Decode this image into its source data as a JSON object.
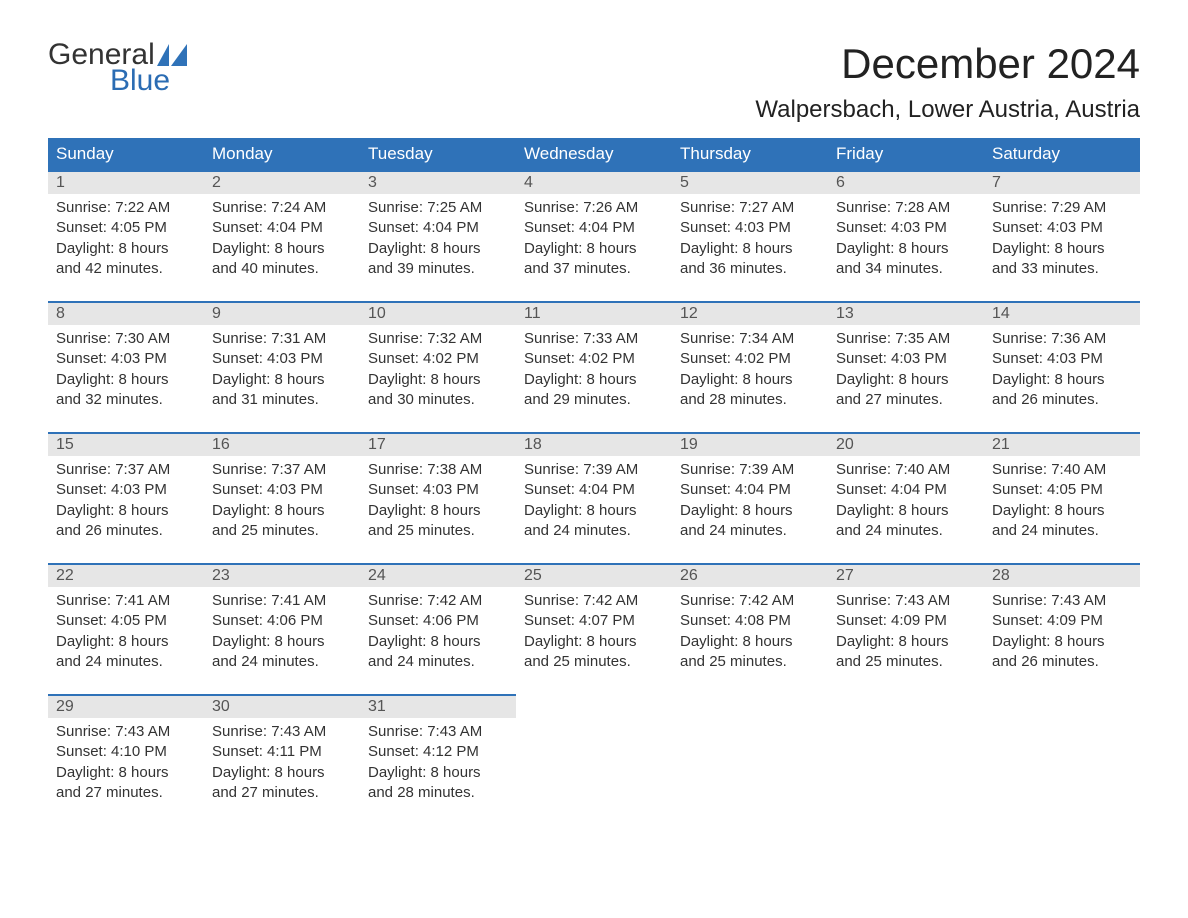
{
  "logo": {
    "word1": "General",
    "word2": "Blue",
    "sail_color": "#2f72b8"
  },
  "title": "December 2024",
  "location": "Walpersbach, Lower Austria, Austria",
  "colors": {
    "header_bg": "#2f72b8",
    "header_text": "#ffffff",
    "daynum_bg": "#e6e6e6",
    "row_border": "#2f72b8",
    "body_text": "#333333",
    "page_bg": "#ffffff"
  },
  "weekdays": [
    "Sunday",
    "Monday",
    "Tuesday",
    "Wednesday",
    "Thursday",
    "Friday",
    "Saturday"
  ],
  "days": [
    {
      "n": 1,
      "sunrise": "7:22 AM",
      "sunset": "4:05 PM",
      "dl1": "Daylight: 8 hours",
      "dl2": "and 42 minutes."
    },
    {
      "n": 2,
      "sunrise": "7:24 AM",
      "sunset": "4:04 PM",
      "dl1": "Daylight: 8 hours",
      "dl2": "and 40 minutes."
    },
    {
      "n": 3,
      "sunrise": "7:25 AM",
      "sunset": "4:04 PM",
      "dl1": "Daylight: 8 hours",
      "dl2": "and 39 minutes."
    },
    {
      "n": 4,
      "sunrise": "7:26 AM",
      "sunset": "4:04 PM",
      "dl1": "Daylight: 8 hours",
      "dl2": "and 37 minutes."
    },
    {
      "n": 5,
      "sunrise": "7:27 AM",
      "sunset": "4:03 PM",
      "dl1": "Daylight: 8 hours",
      "dl2": "and 36 minutes."
    },
    {
      "n": 6,
      "sunrise": "7:28 AM",
      "sunset": "4:03 PM",
      "dl1": "Daylight: 8 hours",
      "dl2": "and 34 minutes."
    },
    {
      "n": 7,
      "sunrise": "7:29 AM",
      "sunset": "4:03 PM",
      "dl1": "Daylight: 8 hours",
      "dl2": "and 33 minutes."
    },
    {
      "n": 8,
      "sunrise": "7:30 AM",
      "sunset": "4:03 PM",
      "dl1": "Daylight: 8 hours",
      "dl2": "and 32 minutes."
    },
    {
      "n": 9,
      "sunrise": "7:31 AM",
      "sunset": "4:03 PM",
      "dl1": "Daylight: 8 hours",
      "dl2": "and 31 minutes."
    },
    {
      "n": 10,
      "sunrise": "7:32 AM",
      "sunset": "4:02 PM",
      "dl1": "Daylight: 8 hours",
      "dl2": "and 30 minutes."
    },
    {
      "n": 11,
      "sunrise": "7:33 AM",
      "sunset": "4:02 PM",
      "dl1": "Daylight: 8 hours",
      "dl2": "and 29 minutes."
    },
    {
      "n": 12,
      "sunrise": "7:34 AM",
      "sunset": "4:02 PM",
      "dl1": "Daylight: 8 hours",
      "dl2": "and 28 minutes."
    },
    {
      "n": 13,
      "sunrise": "7:35 AM",
      "sunset": "4:03 PM",
      "dl1": "Daylight: 8 hours",
      "dl2": "and 27 minutes."
    },
    {
      "n": 14,
      "sunrise": "7:36 AM",
      "sunset": "4:03 PM",
      "dl1": "Daylight: 8 hours",
      "dl2": "and 26 minutes."
    },
    {
      "n": 15,
      "sunrise": "7:37 AM",
      "sunset": "4:03 PM",
      "dl1": "Daylight: 8 hours",
      "dl2": "and 26 minutes."
    },
    {
      "n": 16,
      "sunrise": "7:37 AM",
      "sunset": "4:03 PM",
      "dl1": "Daylight: 8 hours",
      "dl2": "and 25 minutes."
    },
    {
      "n": 17,
      "sunrise": "7:38 AM",
      "sunset": "4:03 PM",
      "dl1": "Daylight: 8 hours",
      "dl2": "and 25 minutes."
    },
    {
      "n": 18,
      "sunrise": "7:39 AM",
      "sunset": "4:04 PM",
      "dl1": "Daylight: 8 hours",
      "dl2": "and 24 minutes."
    },
    {
      "n": 19,
      "sunrise": "7:39 AM",
      "sunset": "4:04 PM",
      "dl1": "Daylight: 8 hours",
      "dl2": "and 24 minutes."
    },
    {
      "n": 20,
      "sunrise": "7:40 AM",
      "sunset": "4:04 PM",
      "dl1": "Daylight: 8 hours",
      "dl2": "and 24 minutes."
    },
    {
      "n": 21,
      "sunrise": "7:40 AM",
      "sunset": "4:05 PM",
      "dl1": "Daylight: 8 hours",
      "dl2": "and 24 minutes."
    },
    {
      "n": 22,
      "sunrise": "7:41 AM",
      "sunset": "4:05 PM",
      "dl1": "Daylight: 8 hours",
      "dl2": "and 24 minutes."
    },
    {
      "n": 23,
      "sunrise": "7:41 AM",
      "sunset": "4:06 PM",
      "dl1": "Daylight: 8 hours",
      "dl2": "and 24 minutes."
    },
    {
      "n": 24,
      "sunrise": "7:42 AM",
      "sunset": "4:06 PM",
      "dl1": "Daylight: 8 hours",
      "dl2": "and 24 minutes."
    },
    {
      "n": 25,
      "sunrise": "7:42 AM",
      "sunset": "4:07 PM",
      "dl1": "Daylight: 8 hours",
      "dl2": "and 25 minutes."
    },
    {
      "n": 26,
      "sunrise": "7:42 AM",
      "sunset": "4:08 PM",
      "dl1": "Daylight: 8 hours",
      "dl2": "and 25 minutes."
    },
    {
      "n": 27,
      "sunrise": "7:43 AM",
      "sunset": "4:09 PM",
      "dl1": "Daylight: 8 hours",
      "dl2": "and 25 minutes."
    },
    {
      "n": 28,
      "sunrise": "7:43 AM",
      "sunset": "4:09 PM",
      "dl1": "Daylight: 8 hours",
      "dl2": "and 26 minutes."
    },
    {
      "n": 29,
      "sunrise": "7:43 AM",
      "sunset": "4:10 PM",
      "dl1": "Daylight: 8 hours",
      "dl2": "and 27 minutes."
    },
    {
      "n": 30,
      "sunrise": "7:43 AM",
      "sunset": "4:11 PM",
      "dl1": "Daylight: 8 hours",
      "dl2": "and 27 minutes."
    },
    {
      "n": 31,
      "sunrise": "7:43 AM",
      "sunset": "4:12 PM",
      "dl1": "Daylight: 8 hours",
      "dl2": "and 28 minutes."
    }
  ],
  "first_weekday_index": 0,
  "labels": {
    "sunrise": "Sunrise:",
    "sunset": "Sunset:"
  }
}
